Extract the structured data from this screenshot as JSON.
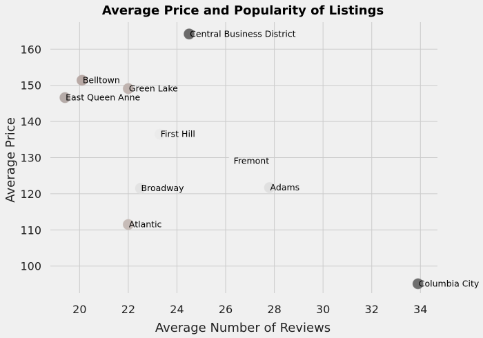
{
  "chart_data": {
    "type": "scatter",
    "title": "Average Price and Popularity of Listings",
    "xlabel": "Average Number of Reviews",
    "ylabel": "Average Price",
    "xlim": [
      18.8,
      34.7
    ],
    "ylim": [
      92.5,
      167.5
    ],
    "xticks": [
      20,
      22,
      24,
      26,
      28,
      30,
      32,
      34
    ],
    "yticks": [
      100,
      110,
      120,
      130,
      140,
      150,
      160
    ],
    "grid": true,
    "legend": "none",
    "background_color": "#f0f0f0",
    "points": [
      {
        "label": "Central Business District",
        "x": 24.5,
        "y": 164.2,
        "color": "#6b6a6a"
      },
      {
        "label": "Belltown",
        "x": 20.1,
        "y": 151.4,
        "color": "#b9aaa6"
      },
      {
        "label": "Green Lake",
        "x": 22.0,
        "y": 149.1,
        "color": "#c0b4b0"
      },
      {
        "label": "East Queen Anne",
        "x": 19.4,
        "y": 146.6,
        "color": "#b5aba8"
      },
      {
        "label": "First Hill",
        "x": 23.3,
        "y": 136.5,
        "color": "#ebebeb"
      },
      {
        "label": "Fremont",
        "x": 26.3,
        "y": 129.0,
        "color": "#f0f0f0"
      },
      {
        "label": "Adams",
        "x": 27.8,
        "y": 121.7,
        "color": "#e0e0e0"
      },
      {
        "label": "Broadway",
        "x": 22.5,
        "y": 121.5,
        "color": "#e3e3e3"
      },
      {
        "label": "Atlantic",
        "x": 22.0,
        "y": 111.5,
        "color": "#c7bcb8"
      },
      {
        "label": "Columbia City",
        "x": 33.9,
        "y": 95.1,
        "color": "#6f6f6f"
      }
    ]
  }
}
